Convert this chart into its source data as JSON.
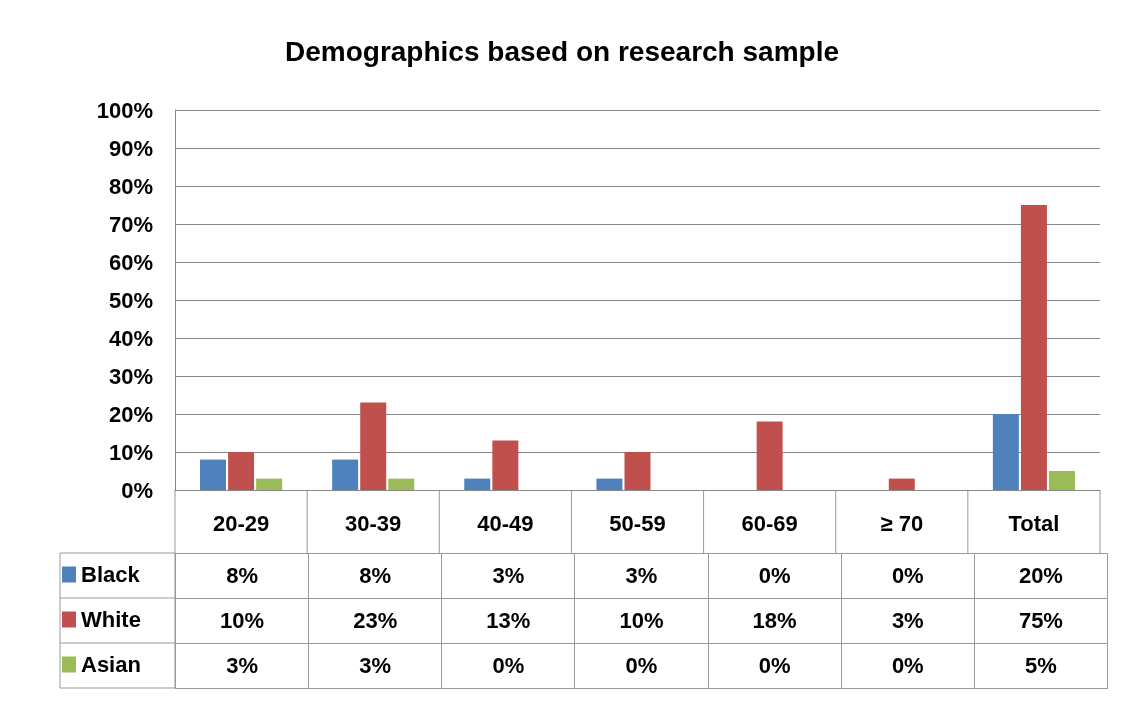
{
  "chart_data": {
    "type": "bar",
    "title": "Demographics based on research sample",
    "categories": [
      "20-29",
      "30-39",
      "40-49",
      "50-59",
      "60-69",
      "≥ 70",
      "Total"
    ],
    "series": [
      {
        "name": "Black",
        "color": "#4f81bd",
        "values": [
          8,
          8,
          3,
          3,
          0,
          0,
          20
        ],
        "value_labels": [
          "8%",
          "8%",
          "3%",
          "3%",
          "0%",
          "0%",
          "20%"
        ]
      },
      {
        "name": "White",
        "color": "#c0504d",
        "values": [
          10,
          23,
          13,
          10,
          18,
          3,
          75
        ],
        "value_labels": [
          "10%",
          "23%",
          "13%",
          "10%",
          "18%",
          "3%",
          "75%"
        ]
      },
      {
        "name": "Asian",
        "color": "#9bbb59",
        "values": [
          3,
          3,
          0,
          0,
          0,
          0,
          5
        ],
        "value_labels": [
          "3%",
          "3%",
          "0%",
          "0%",
          "0%",
          "0%",
          "5%"
        ]
      }
    ],
    "ylim": [
      0,
      100
    ],
    "yticks": [
      {
        "value": 0,
        "label": "0%"
      },
      {
        "value": 10,
        "label": "10%"
      },
      {
        "value": 20,
        "label": "20%"
      },
      {
        "value": 30,
        "label": "30%"
      },
      {
        "value": 40,
        "label": "40%"
      },
      {
        "value": 50,
        "label": "50%"
      },
      {
        "value": 60,
        "label": "60%"
      },
      {
        "value": 70,
        "label": "70%"
      },
      {
        "value": 80,
        "label": "80%"
      },
      {
        "value": 90,
        "label": "90%"
      },
      {
        "value": 100,
        "label": "100%"
      }
    ],
    "grid": "y",
    "legend": "bottom left"
  }
}
